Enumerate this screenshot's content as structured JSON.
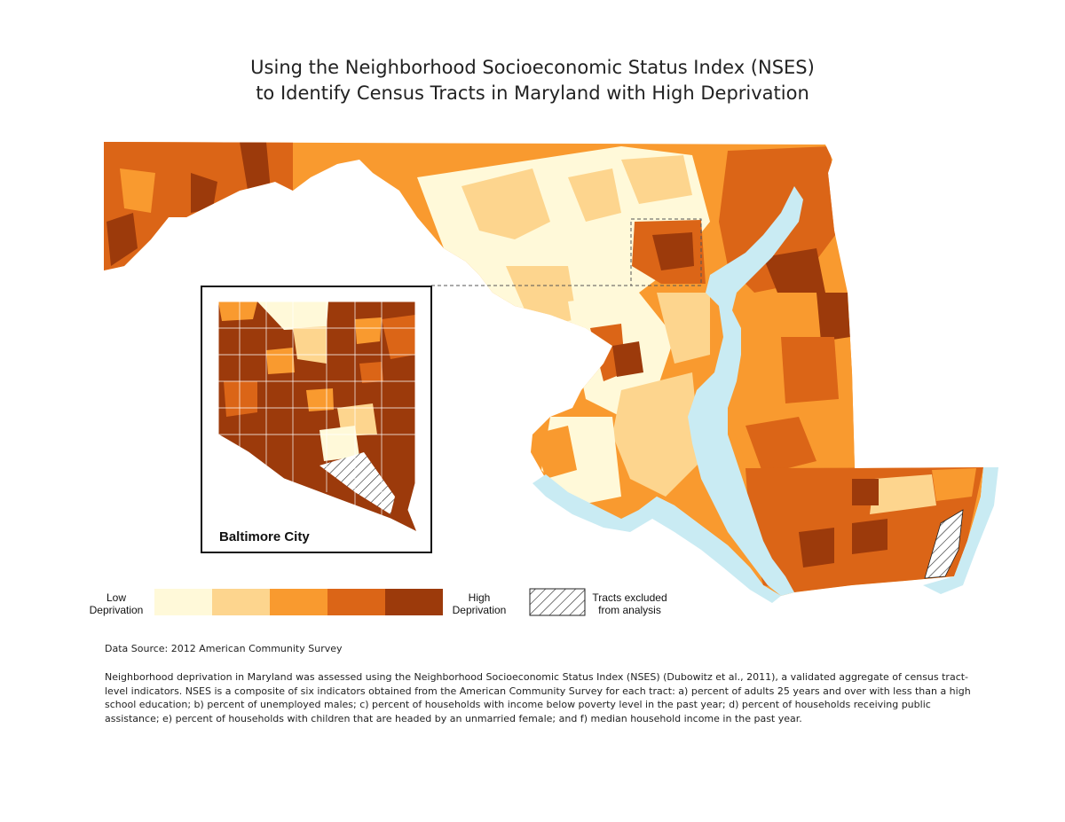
{
  "title": {
    "line1": "Using the Neighborhood Socioeconomic Status Index (NSES)",
    "line2": "to Identify Census Tracts in Maryland with High Deprivation"
  },
  "inset": {
    "label": "Baltimore City"
  },
  "legend": {
    "low_line1": "Low",
    "low_line2": "Deprivation",
    "high_line1": "High",
    "high_line2": "Deprivation",
    "excluded_line1": "Tracts excluded",
    "excluded_line2": "from analysis",
    "classes": [
      {
        "level": 1,
        "color": "#fff9d9"
      },
      {
        "level": 2,
        "color": "#fdd58e"
      },
      {
        "level": 3,
        "color": "#f99a2f"
      },
      {
        "level": 4,
        "color": "#db6517"
      },
      {
        "level": 5,
        "color": "#9c3a0b"
      }
    ]
  },
  "colors": {
    "water": "#c9ebf3",
    "boundary": "#ffffff",
    "inset_border": "#111111"
  },
  "source": "Data Source: 2012 American Community Survey",
  "description": "Neighborhood deprivation in Maryland was assessed using the Neighborhood Socioeconomic Status Index (NSES) (Dubowitz et al., 2011), a validated aggregate of census tract-level indicators. NSES is a composite of six indicators obtained from the American Community Survey for each tract: a) percent of adults 25 years and over with less than a high school education; b) percent of unemployed males; c) percent of households with income below poverty level in the past year; d) percent of households receiving public assistance; e) percent of households with children that are headed by an unmarried female; and f) median household income in the past year."
}
